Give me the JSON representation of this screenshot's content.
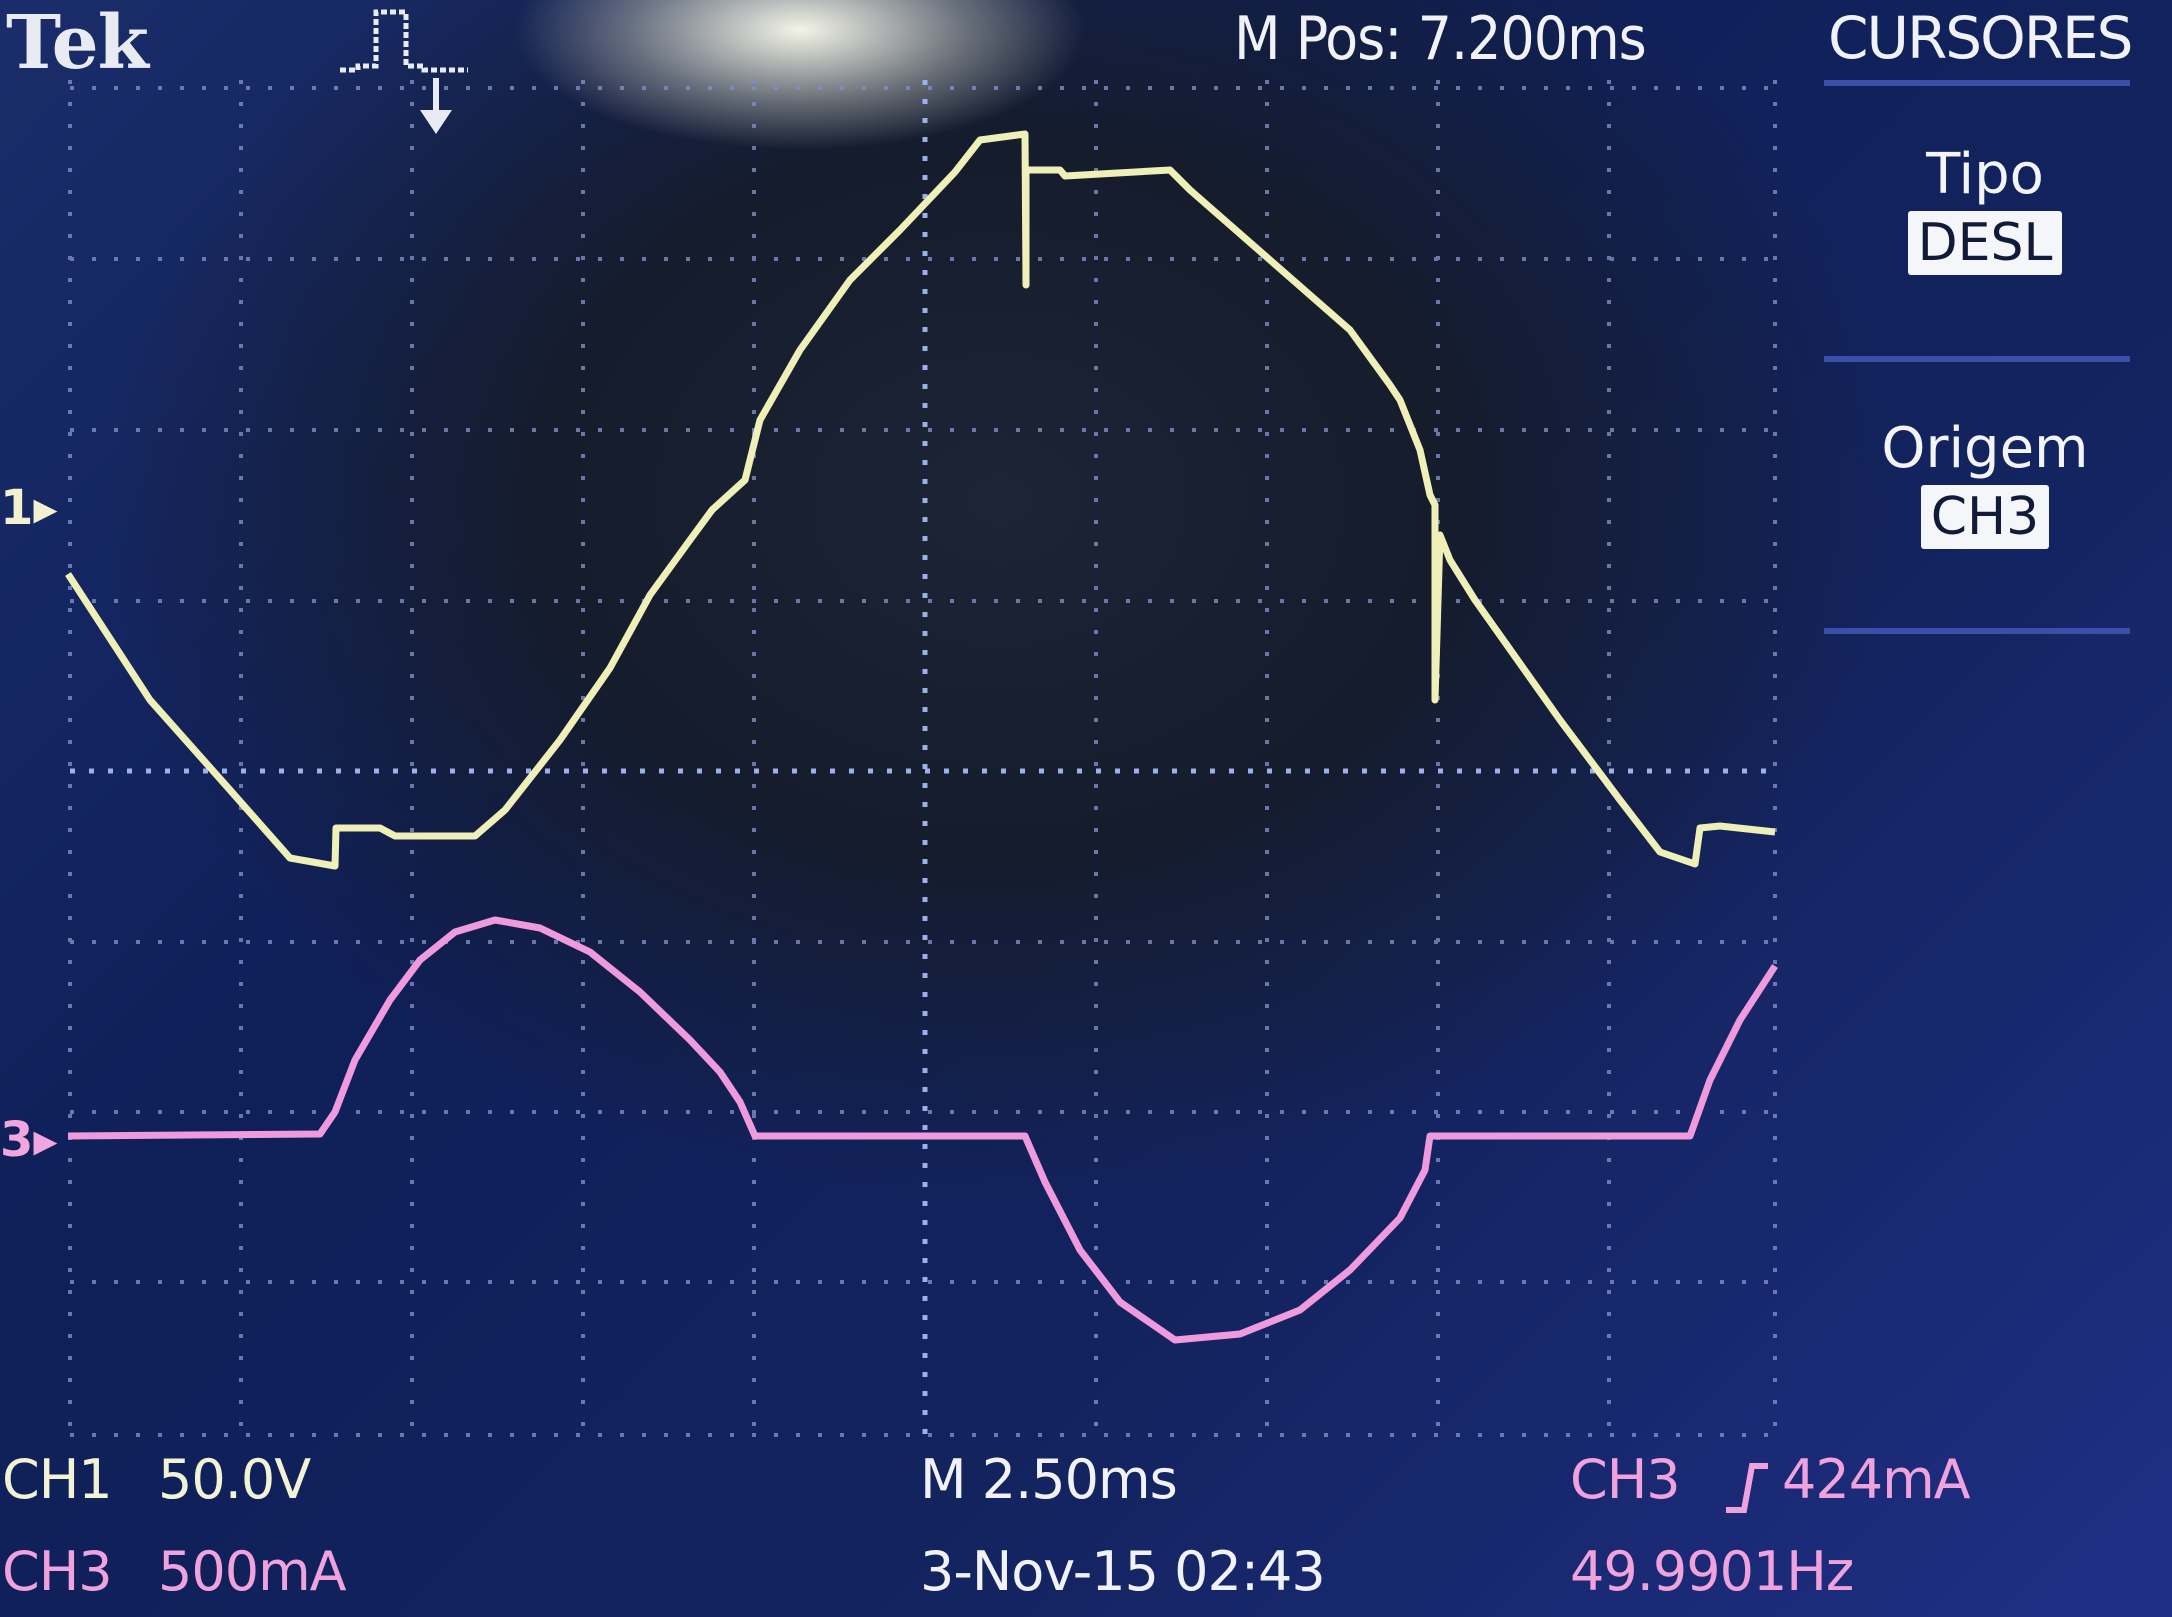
{
  "header": {
    "brand": "Tek",
    "position": "M Pos: 7.200ms",
    "menu_title": "CURSORES"
  },
  "side_menu": {
    "type_label": "Tipo",
    "type_value": "DESL",
    "source_label": "Origem",
    "source_value": "CH3"
  },
  "channel_markers": {
    "ch1": "1",
    "ch3": "3"
  },
  "footer": {
    "ch1_name": "CH1",
    "ch1_scale": "50.0V",
    "ch3_name": "CH3",
    "ch3_scale": "500mA",
    "timebase": "M 2.50ms",
    "datetime": "3-Nov-15 02:43",
    "trigger_source": "CH3",
    "trigger_level": "424mA",
    "frequency": "49.9901Hz"
  },
  "colors": {
    "ch1": "#efefb8",
    "ch3": "#ee9adc",
    "grid": "#7f8ec2",
    "text": "#f0f2f6"
  }
}
